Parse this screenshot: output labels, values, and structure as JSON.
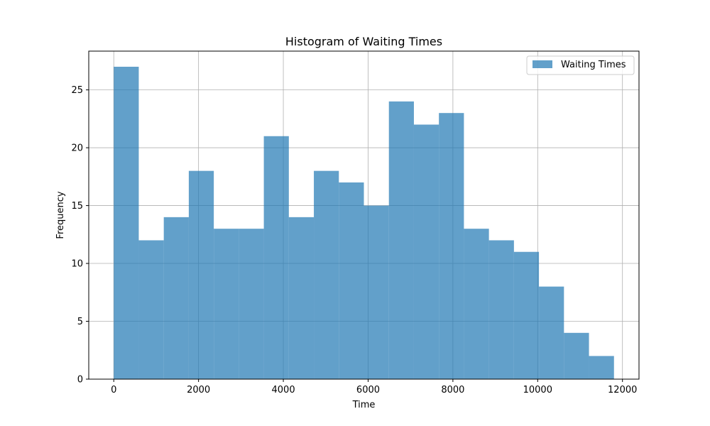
{
  "chart_data": {
    "type": "bar",
    "title": "Histogram of Waiting Times",
    "xlabel": "Time",
    "ylabel": "Frequency",
    "xlim": [
      -590,
      12390
    ],
    "ylim": [
      0,
      28.35
    ],
    "bin_edges": [
      0,
      590,
      1180,
      1770,
      2360,
      2950,
      3540,
      4130,
      4720,
      5310,
      5900,
      6490,
      7080,
      7670,
      8260,
      8850,
      9440,
      10030,
      10620,
      11210,
      11800
    ],
    "values": [
      27,
      12,
      14,
      18,
      13,
      13,
      21,
      14,
      18,
      17,
      15,
      24,
      22,
      23,
      13,
      12,
      11,
      8,
      4,
      2
    ],
    "x_ticks": [
      0,
      2000,
      4000,
      6000,
      8000,
      10000,
      12000
    ],
    "y_ticks": [
      0,
      5,
      10,
      15,
      20,
      25
    ],
    "grid": true,
    "legend": {
      "position": "top-right",
      "entries": [
        "Waiting Times"
      ]
    },
    "series": [
      {
        "name": "Waiting Times",
        "color": "#1f77b4",
        "opacity": 0.7
      }
    ]
  }
}
